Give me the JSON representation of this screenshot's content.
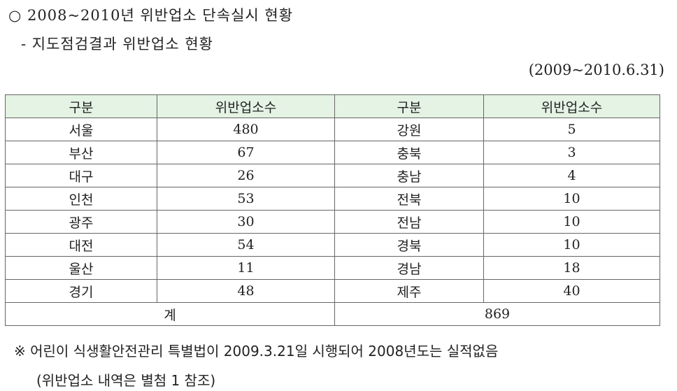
{
  "header": {
    "title": "○ 2008~2010년 위반업소 단속실시 현황",
    "subtitle": "- 지도점검결과 위반업소 현황",
    "period": "(2009~2010.6.31)"
  },
  "table": {
    "columns": [
      "구분",
      "위반업소수",
      "구분",
      "위반업소수"
    ],
    "rows": [
      [
        "서울",
        480,
        "강원",
        5
      ],
      [
        "부산",
        67,
        "충북",
        3
      ],
      [
        "대구",
        26,
        "충남",
        4
      ],
      [
        "인천",
        53,
        "전북",
        10
      ],
      [
        "광주",
        30,
        "전남",
        10
      ],
      [
        "대전",
        54,
        "경북",
        10
      ],
      [
        "울산",
        11,
        "경남",
        18
      ],
      [
        "경기",
        48,
        "제주",
        40
      ]
    ],
    "total": {
      "label": "계",
      "value": 869
    }
  },
  "notes": [
    "※ 어린이 식생활안전관리 특별법이 2009.3.21일 시행되어 2008년도는 실적없음",
    "(위반업소 내역은 별첨 1 참조)"
  ]
}
